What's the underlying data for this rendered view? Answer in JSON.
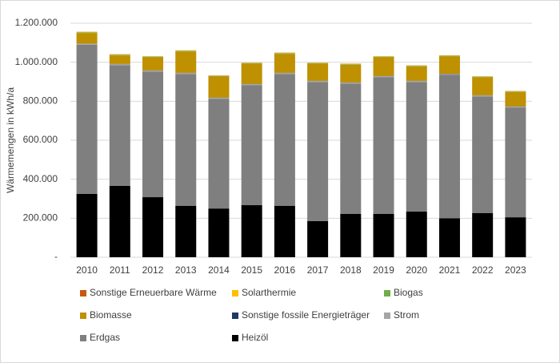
{
  "chart_data": {
    "type": "stacked_bar",
    "y_axis_label": "Wärmemengen in kWh/a",
    "categories": [
      "2010",
      "2011",
      "2012",
      "2013",
      "2014",
      "2015",
      "2016",
      "2017",
      "2018",
      "2019",
      "2020",
      "2021",
      "2022",
      "2023"
    ],
    "series": [
      {
        "name": "Heizöl",
        "color": "#000000",
        "values": [
          325000,
          366000,
          308000,
          263000,
          250000,
          267000,
          263000,
          185000,
          222000,
          222000,
          234000,
          200000,
          226000,
          205000
        ]
      },
      {
        "name": "Erdgas",
        "color": "#7f7f7f",
        "values": [
          765000,
          619000,
          644000,
          677000,
          563000,
          616000,
          677000,
          714000,
          669000,
          702000,
          665000,
          735000,
          599000,
          563000
        ]
      },
      {
        "name": "Strom",
        "color": "#a5a5a5",
        "values": [
          5000,
          5000,
          5000,
          5000,
          5000,
          5000,
          5000,
          5000,
          5000,
          5000,
          5000,
          5000,
          5000,
          5000
        ]
      },
      {
        "name": "Sonstige fossile Energieträger",
        "color": "#203864",
        "values": [
          1000,
          1000,
          1000,
          1000,
          1000,
          1000,
          1000,
          1000,
          1000,
          1000,
          1000,
          1000,
          1000,
          1000
        ]
      },
      {
        "name": "Biomasse",
        "color": "#bf9000",
        "values": [
          54000,
          44000,
          67000,
          109000,
          108000,
          103000,
          97000,
          87000,
          90000,
          95000,
          73000,
          89000,
          91000,
          73000
        ]
      },
      {
        "name": "Biogas",
        "color": "#70ad47",
        "values": [
          3000,
          3000,
          3000,
          3000,
          3000,
          3000,
          3000,
          3000,
          3000,
          3000,
          3000,
          3000,
          3000,
          3000
        ]
      },
      {
        "name": "Solarthermie",
        "color": "#ffc000",
        "values": [
          2000,
          2000,
          2000,
          2000,
          2000,
          2000,
          2000,
          2000,
          2000,
          2000,
          2000,
          2000,
          2000,
          2000
        ]
      },
      {
        "name": "Sonstige Erneuerbare Wärme",
        "color": "#c55a11",
        "values": [
          1000,
          1000,
          1000,
          1000,
          1000,
          1000,
          1000,
          1000,
          1000,
          1000,
          1000,
          1000,
          1000,
          1000
        ]
      }
    ],
    "ylim": [
      0,
      1200000
    ],
    "yticks": [
      {
        "value": 0,
        "label": "-"
      },
      {
        "value": 200000,
        "label": "200.000"
      },
      {
        "value": 400000,
        "label": "400.000"
      },
      {
        "value": 600000,
        "label": "600.000"
      },
      {
        "value": 800000,
        "label": "800.000"
      },
      {
        "value": 1000000,
        "label": "1.000.000"
      },
      {
        "value": 1200000,
        "label": "1.200.000"
      }
    ],
    "grid": true
  }
}
